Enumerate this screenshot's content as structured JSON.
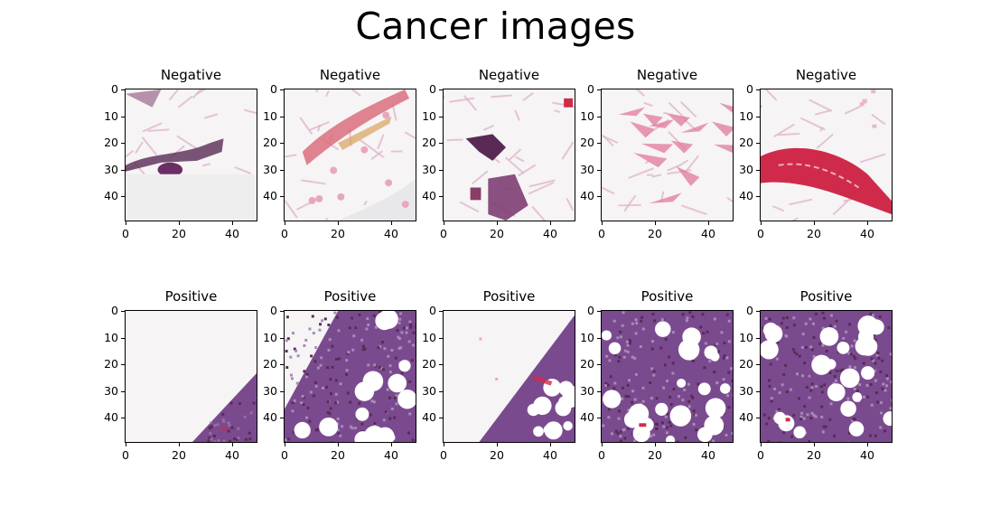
{
  "figure": {
    "title": "Cancer images"
  },
  "axis": {
    "y_ticks": [
      "0",
      "10",
      "20",
      "30",
      "40"
    ],
    "x_ticks": [
      "0",
      "20",
      "40"
    ]
  },
  "panels": [
    {
      "title": "Negative",
      "variant": "neg1"
    },
    {
      "title": "Negative",
      "variant": "neg2"
    },
    {
      "title": "Negative",
      "variant": "neg3"
    },
    {
      "title": "Negative",
      "variant": "neg4"
    },
    {
      "title": "Negative",
      "variant": "neg5"
    },
    {
      "title": "Positive",
      "variant": "pos1"
    },
    {
      "title": "Positive",
      "variant": "pos2"
    },
    {
      "title": "Positive",
      "variant": "pos3"
    },
    {
      "title": "Positive",
      "variant": "pos4"
    },
    {
      "title": "Positive",
      "variant": "pos5"
    }
  ],
  "colors": {
    "background_tissue": "#f6f4f5",
    "stroma_pink": "#d98cb0",
    "dense_purple": "#7a4a8f",
    "dark_purple": "#5a2a55",
    "red_vessel": "#d02a4a"
  }
}
